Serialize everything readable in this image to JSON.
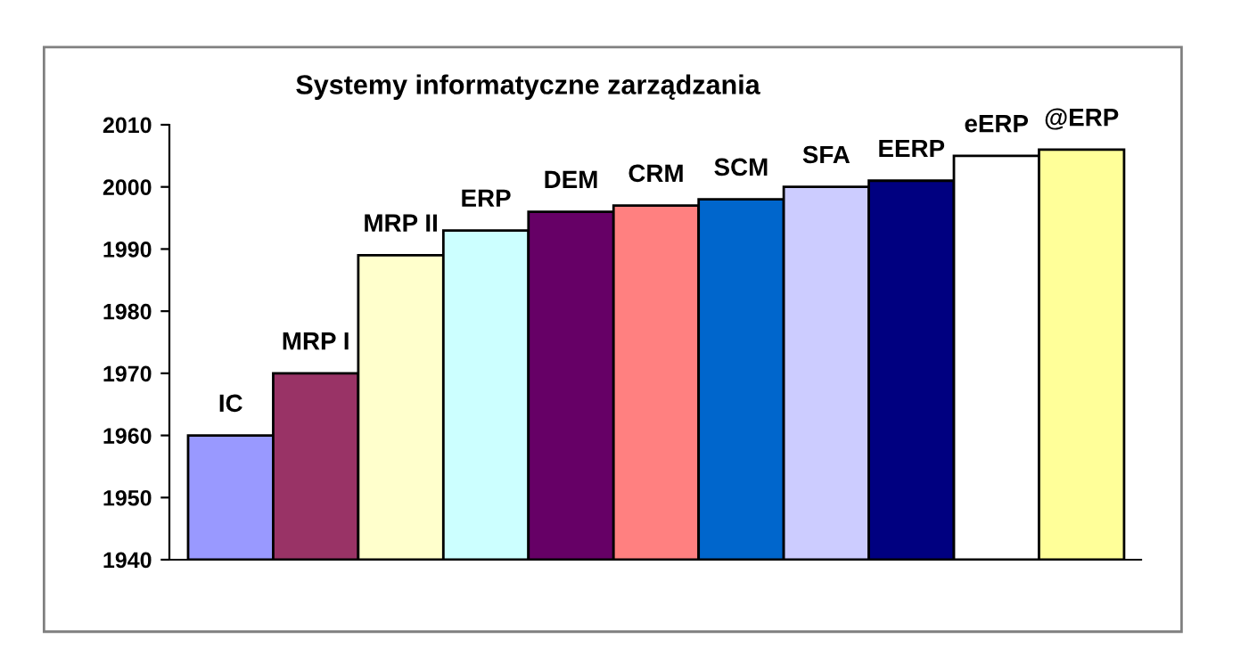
{
  "chart_data": {
    "type": "bar",
    "title": "Systemy informatyczne zarządzania",
    "categories": [
      "IC",
      "MRP I",
      "MRP II",
      "ERP",
      "DEM",
      "CRM",
      "SCM",
      "SFA",
      "EERP",
      "eERP",
      "@ERP"
    ],
    "values": [
      1960,
      1970,
      1989,
      1993,
      1996,
      1997,
      1998,
      2000,
      2001,
      2005,
      2006
    ],
    "colors": [
      "#9999ff",
      "#993366",
      "#ffffcc",
      "#ccffff",
      "#660066",
      "#ff8080",
      "#0066cc",
      "#ccccff",
      "#000080",
      "#ffffff",
      "#ffff99"
    ],
    "ylim": [
      1940,
      2010
    ],
    "yticks": [
      1940,
      1950,
      1960,
      1970,
      1980,
      1990,
      2000,
      2010
    ],
    "grid": false,
    "legend": false
  }
}
